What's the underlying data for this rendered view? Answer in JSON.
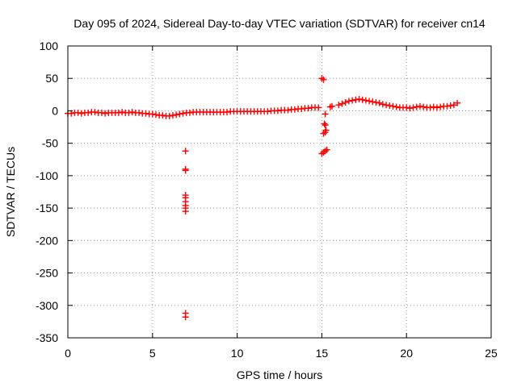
{
  "chart_data": {
    "type": "scatter",
    "title": "Day 095 of 2024, Sidereal Day-to-day VTEC variation (SDTVAR) for receiver cn14",
    "xlabel": "GPS time / hours",
    "ylabel": "SDTVAR / TECUs",
    "xlim": [
      0,
      25
    ],
    "ylim": [
      -350,
      100
    ],
    "xticks": [
      0,
      5,
      10,
      15,
      20,
      25
    ],
    "yticks": [
      100,
      50,
      0,
      -50,
      -100,
      -150,
      -200,
      -250,
      -300,
      -350
    ],
    "grid": true,
    "marker": "+",
    "color": "#ff0000",
    "series": [
      {
        "name": "SDTVAR",
        "points": [
          [
            0.0,
            -4
          ],
          [
            0.2,
            -4
          ],
          [
            0.4,
            -3
          ],
          [
            0.6,
            -3
          ],
          [
            0.8,
            -4
          ],
          [
            1.0,
            -3
          ],
          [
            1.2,
            -3
          ],
          [
            1.4,
            -2
          ],
          [
            1.6,
            -2
          ],
          [
            1.8,
            -3
          ],
          [
            2.0,
            -3
          ],
          [
            2.2,
            -4
          ],
          [
            2.4,
            -3
          ],
          [
            2.6,
            -3
          ],
          [
            2.8,
            -3
          ],
          [
            3.0,
            -3
          ],
          [
            3.2,
            -2
          ],
          [
            3.4,
            -3
          ],
          [
            3.6,
            -3
          ],
          [
            3.8,
            -2
          ],
          [
            4.0,
            -3
          ],
          [
            4.2,
            -3
          ],
          [
            4.4,
            -4
          ],
          [
            4.6,
            -4
          ],
          [
            4.8,
            -5
          ],
          [
            5.0,
            -5
          ],
          [
            5.2,
            -6
          ],
          [
            5.4,
            -7
          ],
          [
            5.6,
            -7
          ],
          [
            5.8,
            -8
          ],
          [
            6.0,
            -8
          ],
          [
            6.2,
            -7
          ],
          [
            6.4,
            -6
          ],
          [
            6.6,
            -5
          ],
          [
            6.8,
            -4
          ],
          [
            7.0,
            -3
          ],
          [
            7.2,
            -3
          ],
          [
            6.95,
            -62
          ],
          [
            6.95,
            -90
          ],
          [
            6.95,
            -92
          ],
          [
            6.95,
            -130
          ],
          [
            6.95,
            -134
          ],
          [
            6.95,
            -140
          ],
          [
            6.95,
            -146
          ],
          [
            6.95,
            -150
          ],
          [
            6.95,
            -155
          ],
          [
            6.95,
            -312
          ],
          [
            6.95,
            -318
          ],
          [
            7.4,
            -2
          ],
          [
            7.6,
            -2
          ],
          [
            7.8,
            -2
          ],
          [
            8.0,
            -2
          ],
          [
            8.2,
            -2
          ],
          [
            8.4,
            -2
          ],
          [
            8.6,
            -2
          ],
          [
            8.8,
            -2
          ],
          [
            9.0,
            -2
          ],
          [
            9.2,
            -2
          ],
          [
            9.4,
            -2
          ],
          [
            9.6,
            -1
          ],
          [
            9.8,
            -1
          ],
          [
            10.0,
            -1
          ],
          [
            10.2,
            -1
          ],
          [
            10.4,
            -1
          ],
          [
            10.6,
            -1
          ],
          [
            10.8,
            -1
          ],
          [
            11.0,
            -1
          ],
          [
            11.2,
            -1
          ],
          [
            11.4,
            -1
          ],
          [
            11.6,
            -1
          ],
          [
            11.8,
            -1
          ],
          [
            12.0,
            0
          ],
          [
            12.2,
            0
          ],
          [
            12.4,
            0
          ],
          [
            12.6,
            1
          ],
          [
            12.8,
            1
          ],
          [
            13.0,
            1
          ],
          [
            13.2,
            2
          ],
          [
            13.4,
            2
          ],
          [
            13.6,
            3
          ],
          [
            13.8,
            3
          ],
          [
            14.0,
            4
          ],
          [
            14.2,
            4
          ],
          [
            14.4,
            5
          ],
          [
            14.6,
            5
          ],
          [
            14.8,
            5
          ],
          [
            15.0,
            50
          ],
          [
            15.1,
            48
          ],
          [
            15.2,
            -5
          ],
          [
            15.15,
            -20
          ],
          [
            15.2,
            -22
          ],
          [
            15.1,
            -35
          ],
          [
            15.2,
            -33
          ],
          [
            15.25,
            -30
          ],
          [
            15.0,
            -66
          ],
          [
            15.1,
            -64
          ],
          [
            15.2,
            -62
          ],
          [
            15.3,
            -60
          ],
          [
            15.5,
            6
          ],
          [
            15.6,
            7
          ],
          [
            16.0,
            9
          ],
          [
            16.2,
            11
          ],
          [
            16.4,
            13
          ],
          [
            16.6,
            15
          ],
          [
            16.8,
            16
          ],
          [
            17.0,
            17
          ],
          [
            17.2,
            18
          ],
          [
            17.4,
            17
          ],
          [
            17.6,
            16
          ],
          [
            17.8,
            15
          ],
          [
            18.0,
            14
          ],
          [
            18.2,
            13
          ],
          [
            18.4,
            12
          ],
          [
            18.6,
            10
          ],
          [
            18.8,
            9
          ],
          [
            19.0,
            8
          ],
          [
            19.2,
            7
          ],
          [
            19.4,
            6
          ],
          [
            19.6,
            5
          ],
          [
            19.8,
            5
          ],
          [
            20.0,
            5
          ],
          [
            20.2,
            4
          ],
          [
            20.4,
            5
          ],
          [
            20.6,
            6
          ],
          [
            20.8,
            7
          ],
          [
            21.0,
            6
          ],
          [
            21.2,
            5
          ],
          [
            21.4,
            5
          ],
          [
            21.6,
            6
          ],
          [
            21.8,
            5
          ],
          [
            22.0,
            6
          ],
          [
            22.2,
            7
          ],
          [
            22.4,
            7
          ],
          [
            22.6,
            8
          ],
          [
            22.8,
            9
          ],
          [
            23.0,
            12
          ]
        ]
      }
    ]
  }
}
